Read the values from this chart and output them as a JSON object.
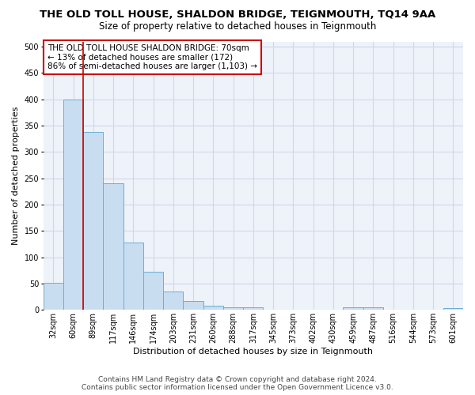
{
  "title": "THE OLD TOLL HOUSE, SHALDON BRIDGE, TEIGNMOUTH, TQ14 9AA",
  "subtitle": "Size of property relative to detached houses in Teignmouth",
  "xlabel": "Distribution of detached houses by size in Teignmouth",
  "ylabel": "Number of detached properties",
  "footer_line1": "Contains HM Land Registry data © Crown copyright and database right 2024.",
  "footer_line2": "Contains public sector information licensed under the Open Government Licence v3.0.",
  "bar_labels": [
    "32sqm",
    "60sqm",
    "89sqm",
    "117sqm",
    "146sqm",
    "174sqm",
    "203sqm",
    "231sqm",
    "260sqm",
    "288sqm",
    "317sqm",
    "345sqm",
    "373sqm",
    "402sqm",
    "430sqm",
    "459sqm",
    "487sqm",
    "516sqm",
    "544sqm",
    "573sqm",
    "601sqm"
  ],
  "bar_values": [
    52,
    400,
    338,
    241,
    128,
    72,
    35,
    17,
    8,
    5,
    5,
    0,
    0,
    0,
    0,
    5,
    5,
    0,
    0,
    0,
    3
  ],
  "bar_color": "#c8ddf0",
  "bar_edge_color": "#6baed6",
  "vline_x": 1.5,
  "vline_color": "#cc0000",
  "ylim": [
    0,
    510
  ],
  "yticks": [
    0,
    50,
    100,
    150,
    200,
    250,
    300,
    350,
    400,
    450,
    500
  ],
  "annotation_text": "THE OLD TOLL HOUSE SHALDON BRIDGE: 70sqm\n← 13% of detached houses are smaller (172)\n86% of semi-detached houses are larger (1,103) →",
  "grid_color": "#d0d8e8",
  "bg_color": "#eef2f9",
  "title_fontsize": 9.5,
  "subtitle_fontsize": 8.5,
  "ylabel_fontsize": 8,
  "xlabel_fontsize": 8,
  "tick_fontsize": 7,
  "annotation_fontsize": 7.5,
  "footer_fontsize": 6.5
}
